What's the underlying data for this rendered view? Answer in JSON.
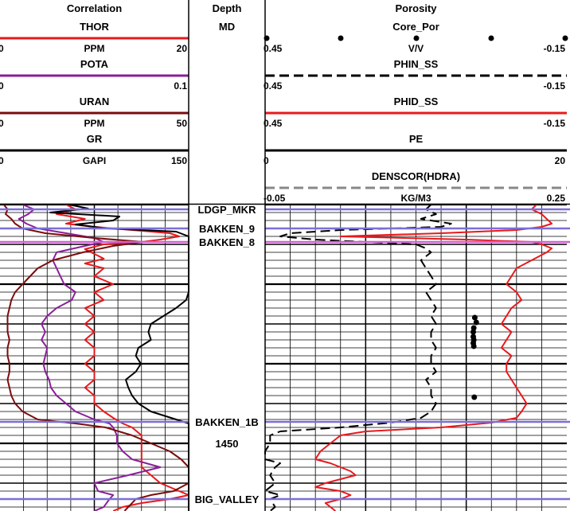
{
  "tracks": {
    "correlation": {
      "title": "Correlation"
    },
    "depth": {
      "title": "Depth",
      "unit": "MD"
    },
    "porosity": {
      "title": "Porosity"
    }
  },
  "curves": {
    "correlation": [
      {
        "name": "THOR",
        "unit": "PPM",
        "left": "0",
        "right": "20",
        "color": "#e8191c",
        "dash": "solid"
      },
      {
        "name": "POTA",
        "unit": "",
        "left": "0",
        "right": "0.1",
        "color": "#8b1f9a",
        "dash": "solid"
      },
      {
        "name": "URAN",
        "unit": "PPM",
        "left": "0",
        "right": "50",
        "color": "#7a0d0d",
        "dash": "solid"
      },
      {
        "name": "GR",
        "unit": "GAPI",
        "left": "0",
        "right": "150",
        "color": "#000000",
        "dash": "solid"
      }
    ],
    "porosity": [
      {
        "name": "Core_Por",
        "unit": "V/V",
        "left": "0.45",
        "right": "-0.15",
        "color": "#000000",
        "dash": "dots"
      },
      {
        "name": "PHIN_SS",
        "unit": "",
        "left": "0.45",
        "right": "-0.15",
        "color": "#000000",
        "dash": "dash"
      },
      {
        "name": "PHID_SS",
        "unit": "",
        "left": "0.45",
        "right": "-0.15",
        "color": "#e8191c",
        "dash": "solid"
      },
      {
        "name": "PE",
        "unit": "",
        "left": "0",
        "right": "20",
        "color": "#000000",
        "dash": "solid"
      },
      {
        "name": "DENSCOR(HDRA)",
        "unit": "KG/M3",
        "left": "-0.05",
        "right": "0.25",
        "color": "#888888",
        "dash": "dash"
      }
    ]
  },
  "depth_labels": [
    "1450"
  ],
  "formation_tops": [
    {
      "name": "LDGP_MKR",
      "depth": 1420.6
    },
    {
      "name": "BAKKEN_9",
      "depth": 1423.0
    },
    {
      "name": "BAKKEN_8",
      "depth": 1424.7
    },
    {
      "name": "BAKKEN_1B",
      "depth": 1447.3
    },
    {
      "name": "BIG_VALLEY",
      "depth": 1457.0
    }
  ],
  "colors": {
    "tops": "#7b6fd9",
    "tops_alt": "#d060d0",
    "grid": "#000000"
  },
  "chart_data": {
    "type": "line",
    "title": "",
    "xlabel": "",
    "ylabel": "Depth",
    "ylim": [
      1420,
      1458.5
    ],
    "grid": true,
    "series": [
      {
        "name": "THOR",
        "track": "correlation",
        "xlim": [
          0,
          20
        ],
        "depth": [
          1420.0,
          1420.6,
          1421.2,
          1421.8,
          1422.4,
          1422.8,
          1423.2,
          1423.6,
          1424.0,
          1424.4,
          1424.7,
          1425.0,
          1425.6,
          1426.2,
          1426.8,
          1427.4,
          1428.0,
          1429.0,
          1430.0,
          1431.0,
          1432.0,
          1433.0,
          1434.0,
          1435.0,
          1436.0,
          1437.0,
          1438.0,
          1439.0,
          1440.0,
          1441.0,
          1442.0,
          1443.0,
          1444.0,
          1445.0,
          1446.0,
          1446.8,
          1447.5,
          1448.0,
          1449.0,
          1450.0,
          1451.0,
          1452.0,
          1453.0,
          1454.0,
          1455.0,
          1455.5,
          1456.0,
          1456.5,
          1457.0,
          1457.5,
          1458.0,
          1458.5
        ],
        "values": [
          7,
          8,
          6,
          9,
          7,
          10,
          14,
          18,
          19,
          17,
          15,
          11,
          9,
          10,
          11,
          9,
          11,
          10,
          12,
          10,
          11,
          9,
          10,
          9,
          10,
          9,
          10,
          10,
          9,
          10,
          10,
          9,
          10,
          10,
          11,
          12,
          13,
          14,
          15,
          15,
          15,
          15,
          15,
          16,
          17,
          18,
          19,
          20,
          18,
          15,
          13,
          12
        ]
      },
      {
        "name": "POTA",
        "track": "correlation",
        "xlim": [
          0,
          0.1
        ],
        "depth": [
          1420.0,
          1420.6,
          1421.2,
          1421.8,
          1422.4,
          1423.0,
          1423.6,
          1424.2,
          1424.7,
          1425.2,
          1426.0,
          1427.0,
          1428.0,
          1429.0,
          1430.0,
          1431.0,
          1432.0,
          1433.0,
          1434.0,
          1435.0,
          1436.0,
          1437.0,
          1438.0,
          1439.0,
          1440.0,
          1441.0,
          1442.0,
          1443.0,
          1444.0,
          1445.0,
          1446.0,
          1447.0,
          1447.5,
          1448.0,
          1449.0,
          1450.0,
          1451.0,
          1452.0,
          1453.0,
          1454.0,
          1455.0,
          1456.0,
          1456.5,
          1457.0,
          1458.0,
          1458.5
        ],
        "values": [
          0.012,
          0.018,
          0.015,
          0.01,
          0.014,
          0.02,
          0.035,
          0.05,
          0.055,
          0.045,
          0.03,
          0.028,
          0.03,
          0.032,
          0.034,
          0.04,
          0.038,
          0.03,
          0.025,
          0.022,
          0.024,
          0.022,
          0.025,
          0.024,
          0.023,
          0.024,
          0.026,
          0.027,
          0.03,
          0.035,
          0.04,
          0.05,
          0.058,
          0.06,
          0.062,
          0.062,
          0.065,
          0.07,
          0.085,
          0.068,
          0.05,
          0.052,
          0.06,
          0.058,
          0.055,
          0.05
        ]
      },
      {
        "name": "URAN",
        "track": "correlation",
        "xlim": [
          0,
          50
        ],
        "depth": [
          1420.0,
          1420.6,
          1421.2,
          1421.8,
          1422.4,
          1423.0,
          1423.6,
          1424.2,
          1424.7,
          1425.2,
          1426.0,
          1427.0,
          1428.0,
          1429.0,
          1430.0,
          1431.0,
          1432.0,
          1433.0,
          1434.0,
          1435.0,
          1436.0,
          1437.0,
          1438.0,
          1439.0,
          1440.0,
          1441.0,
          1442.0,
          1443.0,
          1444.0,
          1445.0,
          1446.0,
          1447.0,
          1447.5,
          1448.0,
          1449.0,
          1450.0,
          1451.0,
          1452.0,
          1453.0,
          1454.0,
          1455.0,
          1456.0,
          1456.5,
          1457.0,
          1458.0,
          1458.5
        ],
        "values": [
          1,
          2,
          1.5,
          3,
          4,
          6,
          12,
          25,
          38,
          30,
          22,
          14,
          10,
          8,
          6,
          4,
          3,
          2.5,
          2,
          2,
          2,
          2.5,
          2,
          2,
          2.5,
          2.5,
          2,
          2.5,
          3,
          4,
          6,
          10,
          20,
          28,
          35,
          40,
          45,
          48,
          50,
          50,
          50,
          46,
          40,
          36,
          34,
          33
        ]
      },
      {
        "name": "GR",
        "track": "correlation",
        "xlim": [
          0,
          150
        ],
        "depth": [
          1420.0,
          1420.5,
          1421.0,
          1421.5,
          1422.0,
          1422.5,
          1423.0,
          1423.4,
          1424.0,
          1424.7,
          1425.2,
          1426.0,
          1427.0,
          1428.0,
          1429.0,
          1430.0,
          1431.0,
          1432.0,
          1433.0,
          1434.0,
          1435.0,
          1436.0,
          1437.0,
          1438.0,
          1439.0,
          1440.0,
          1441.0,
          1442.0,
          1443.0,
          1444.0,
          1445.0,
          1446.0,
          1447.0,
          1447.5,
          1448.0,
          1449.0,
          1450.0,
          1451.0,
          1452.0,
          1453.0,
          1454.0,
          1455.0,
          1456.0,
          1457.0,
          1458.0,
          1458.5
        ],
        "values": [
          55,
          70,
          40,
          95,
          90,
          60,
          85,
          140,
          150,
          150,
          150,
          150,
          150,
          150,
          150,
          150,
          150,
          148,
          140,
          130,
          120,
          118,
          120,
          110,
          108,
          112,
          108,
          100,
          102,
          105,
          110,
          120,
          140,
          150,
          150,
          150,
          150,
          150,
          150,
          150,
          150,
          150,
          150,
          150,
          150,
          150
        ]
      },
      {
        "name": "Core_Por",
        "track": "porosity",
        "xlim": [
          0.45,
          -0.15
        ],
        "style": "points",
        "depth": [
          1434.2,
          1434.8,
          1435.5,
          1436.0,
          1436.6,
          1437.0,
          1437.4,
          1437.8,
          1444.2
        ],
        "values": [
          0.033,
          0.03,
          0.035,
          0.036,
          0.036,
          0.035,
          0.036,
          0.035,
          0.034
        ]
      },
      {
        "name": "PHIN_SS",
        "track": "porosity",
        "xlim": [
          0.45,
          -0.15
        ],
        "depth": [
          1420.0,
          1420.6,
          1421.2,
          1421.8,
          1422.4,
          1422.8,
          1423.2,
          1423.6,
          1424.0,
          1424.4,
          1424.7,
          1425.0,
          1425.5,
          1426.0,
          1427.0,
          1428.0,
          1429.0,
          1430.0,
          1431.0,
          1432.0,
          1433.0,
          1434.0,
          1435.0,
          1436.0,
          1437.0,
          1438.0,
          1439.0,
          1440.0,
          1441.0,
          1442.0,
          1443.0,
          1444.0,
          1445.0,
          1446.0,
          1446.8,
          1447.4,
          1448.0,
          1448.5,
          1449.0,
          1450.0,
          1451.0,
          1452.0,
          1452.5,
          1453.0,
          1454.0,
          1455.0,
          1456.0,
          1456.5,
          1457.0,
          1458.0,
          1458.5
        ],
        "values": [
          0.12,
          0.13,
          0.11,
          0.14,
          0.08,
          0.1,
          0.3,
          0.4,
          0.42,
          0.35,
          0.25,
          0.15,
          0.13,
          0.12,
          0.14,
          0.13,
          0.12,
          0.11,
          0.13,
          0.12,
          0.11,
          0.12,
          0.11,
          0.12,
          0.12,
          0.11,
          0.12,
          0.12,
          0.11,
          0.13,
          0.12,
          0.12,
          0.11,
          0.12,
          0.14,
          0.2,
          0.3,
          0.42,
          0.44,
          0.44,
          0.45,
          0.45,
          0.42,
          0.43,
          0.44,
          0.43,
          0.45,
          0.42,
          0.44,
          0.43,
          0.44
        ]
      },
      {
        "name": "PHID_SS",
        "track": "porosity",
        "xlim": [
          0.45,
          -0.15
        ],
        "depth": [
          1420.0,
          1420.6,
          1421.2,
          1421.8,
          1422.4,
          1422.8,
          1423.2,
          1423.6,
          1424.0,
          1424.4,
          1424.7,
          1425.0,
          1425.5,
          1426.0,
          1427.0,
          1428.0,
          1429.0,
          1430.0,
          1431.0,
          1432.0,
          1433.0,
          1434.0,
          1435.0,
          1436.0,
          1437.0,
          1438.0,
          1439.0,
          1440.0,
          1441.0,
          1442.0,
          1443.0,
          1444.0,
          1445.0,
          1446.0,
          1446.8,
          1447.4,
          1448.0,
          1448.5,
          1449.0,
          1450.0,
          1451.0,
          1452.0,
          1452.5,
          1453.0,
          1453.5,
          1454.0,
          1454.5,
          1455.0,
          1455.5,
          1456.0,
          1456.5,
          1457.0,
          1457.5,
          1458.0,
          1458.5
        ],
        "values": [
          -0.09,
          -0.08,
          -0.1,
          -0.11,
          -0.12,
          -0.1,
          -0.05,
          0.1,
          0.3,
          0.05,
          -0.08,
          -0.1,
          -0.12,
          -0.11,
          -0.08,
          -0.05,
          -0.04,
          -0.03,
          -0.05,
          -0.06,
          -0.04,
          -0.03,
          -0.02,
          -0.04,
          -0.03,
          -0.02,
          -0.04,
          -0.03,
          -0.03,
          -0.04,
          -0.05,
          -0.06,
          -0.07,
          -0.06,
          -0.05,
          0.0,
          0.1,
          0.25,
          0.3,
          0.32,
          0.34,
          0.35,
          0.32,
          0.3,
          0.28,
          0.27,
          0.3,
          0.33,
          0.35,
          0.3,
          0.28,
          0.3,
          0.33,
          0.32,
          0.31
        ]
      }
    ]
  }
}
